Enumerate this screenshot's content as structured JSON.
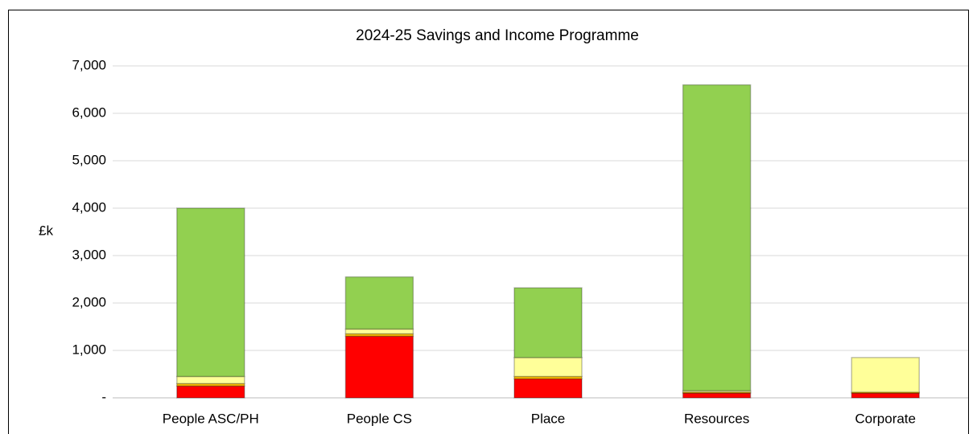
{
  "chart_data": {
    "type": "stacked_bar",
    "title": "2024-25 Savings and Income Programme",
    "y_label": "£k",
    "categories": [
      "People ASC/PH",
      "People CS",
      "Place",
      "Resources",
      "Corporate"
    ],
    "series": [
      {
        "color": "#ff0000",
        "values": [
          250,
          1300,
          400,
          100,
          100
        ]
      },
      {
        "color": "#ffc000",
        "values": [
          50,
          50,
          50,
          20,
          20
        ]
      },
      {
        "color": "#ffff99",
        "values": [
          150,
          100,
          400,
          30,
          730
        ]
      },
      {
        "color": "#92d050",
        "values": [
          3550,
          1100,
          1470,
          6450,
          0
        ]
      }
    ],
    "ylim": [
      0,
      7000
    ],
    "yticks": [
      {
        "value": 0,
        "label": "-"
      },
      {
        "value": 1000,
        "label": "1,000"
      },
      {
        "value": 2000,
        "label": "2,000"
      },
      {
        "value": 3000,
        "label": "3,000"
      },
      {
        "value": 4000,
        "label": "4,000"
      },
      {
        "value": 5000,
        "label": "5,000"
      },
      {
        "value": 6000,
        "label": "6,000"
      },
      {
        "value": 7000,
        "label": "7,000"
      }
    ],
    "grid": true
  }
}
